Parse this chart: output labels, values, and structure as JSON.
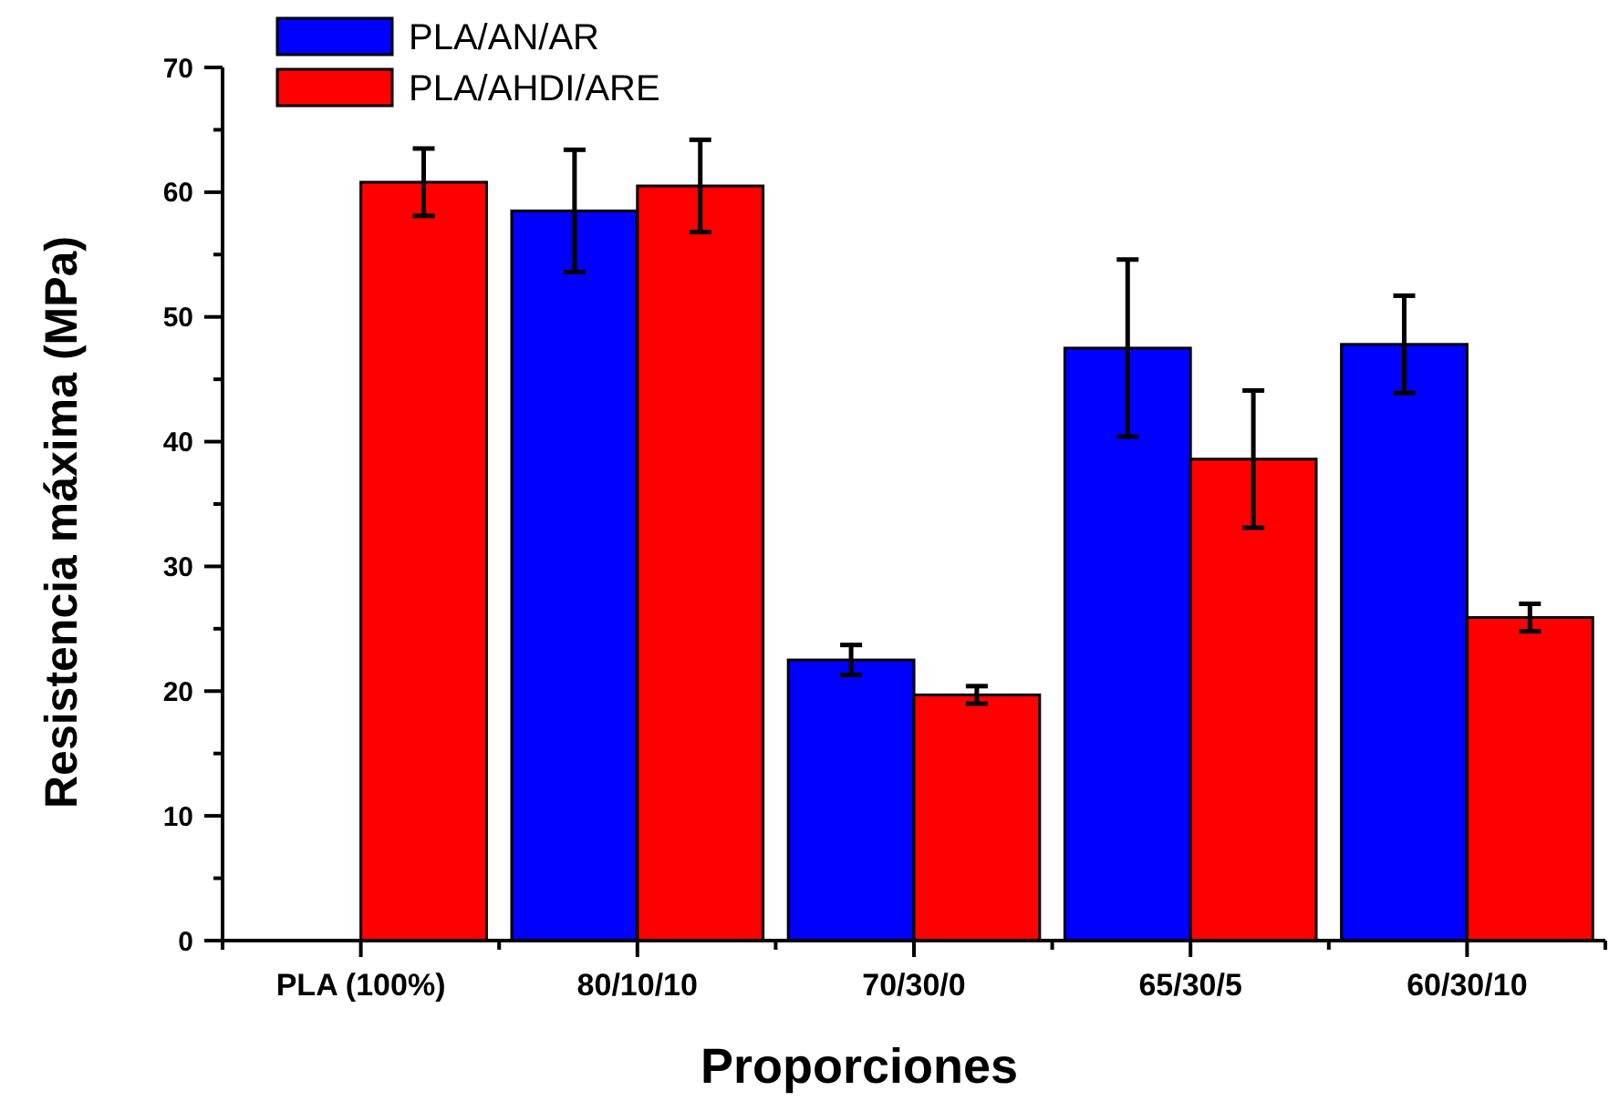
{
  "chart_data": {
    "type": "bar",
    "xlabel": "Proporciones",
    "ylabel": "Resistencia máxima (MPa)",
    "categories": [
      "PLA (100%)",
      "80/10/10",
      "70/30/0",
      "65/30/5",
      "60/30/10"
    ],
    "series": [
      {
        "name": "PLA/AN/AR",
        "color": "#0000ff",
        "values": [
          null,
          58.5,
          22.5,
          47.5,
          47.8
        ],
        "errors": [
          null,
          4.9,
          1.2,
          7.1,
          3.9
        ]
      },
      {
        "name": "PLA/AHDI/ARE",
        "color": "#ff0000",
        "values": [
          60.8,
          60.5,
          19.7,
          38.6,
          25.9
        ],
        "errors": [
          2.7,
          3.7,
          0.7,
          5.5,
          1.1
        ]
      }
    ],
    "ylim": [
      0,
      70
    ],
    "yticks": [
      0,
      10,
      20,
      30,
      40,
      50,
      60,
      70
    ],
    "grid": false,
    "legend": "top left"
  }
}
